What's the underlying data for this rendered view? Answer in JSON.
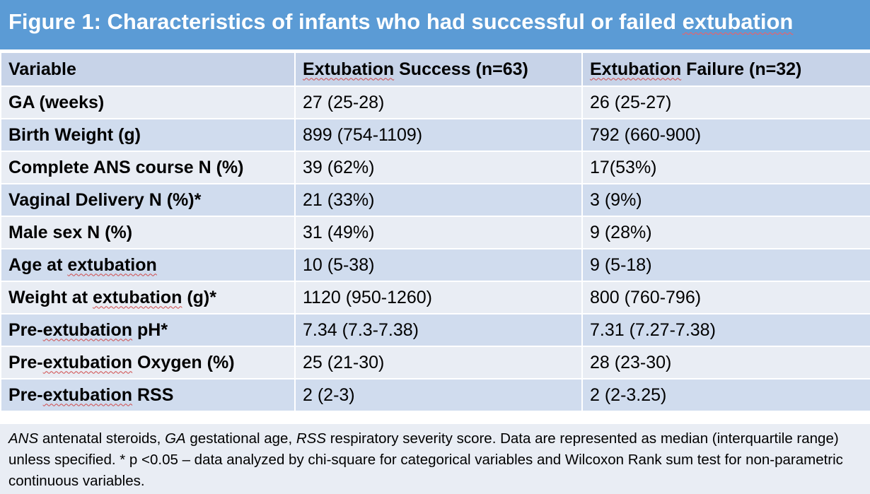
{
  "title": {
    "prefix": "Figure 1: Characteristics of infants who had successful or failed ",
    "last_word": "extubation"
  },
  "table": {
    "headers": [
      {
        "pre": "",
        "sq": "",
        "text": "Variable"
      },
      {
        "pre": "",
        "sq": "Extubation",
        "text": " Success (n=63)"
      },
      {
        "pre": "",
        "sq": "Extubation",
        "text": " Failure (n=32)"
      }
    ],
    "rows": [
      {
        "var_pre": "GA (weeks)",
        "var_sq": "",
        "var_post": "",
        "success": "27 (25-28)",
        "failure": "26 (25-27)"
      },
      {
        "var_pre": "Birth Weight (g)",
        "var_sq": "",
        "var_post": "",
        "success": "899 (754-1109)",
        "failure": "792 (660-900)"
      },
      {
        "var_pre": "Complete ANS course N (%)",
        "var_sq": "",
        "var_post": "",
        "success": "39 (62%)",
        "failure": "17(53%)"
      },
      {
        "var_pre": "Vaginal Delivery N (%)*",
        "var_sq": "",
        "var_post": "",
        "success": "21 (33%)",
        "failure": "3 (9%)"
      },
      {
        "var_pre": "Male sex N (%)",
        "var_sq": "",
        "var_post": "",
        "success": "31 (49%)",
        "failure": "9 (28%)"
      },
      {
        "var_pre": "Age at ",
        "var_sq": "extubation",
        "var_post": "",
        "success": "10 (5-38)",
        "failure": "9 (5-18)"
      },
      {
        "var_pre": "Weight at ",
        "var_sq": "extubation",
        "var_post": " (g)*",
        "success": "1120 (950-1260)",
        "failure": "800 (760-796)"
      },
      {
        "var_pre": "Pre-",
        "var_sq": "extubation",
        "var_post": " pH*",
        "success": "7.34 (7.3-7.38)",
        "failure": "7.31 (7.27-7.38)"
      },
      {
        "var_pre": "Pre-",
        "var_sq": "extubation",
        "var_post": " Oxygen (%)",
        "success": "25 (21-30)",
        "failure": "28 (23-30)"
      },
      {
        "var_pre": "Pre-",
        "var_sq": "extubation",
        "var_post": " RSS",
        "success": "2 (2-3)",
        "failure": "2 (2-3.25)"
      }
    ]
  },
  "footnote": {
    "ans_abbr": "ANS",
    "ans_def": " antenatal steroids, ",
    "ga_abbr": "GA",
    "ga_def": " gestational age, ",
    "rss_abbr": "RSS",
    "rss_def": " respiratory severity score. Data are represented as median (interquartile range) unless specified. * p <0.05 – data analyzed by chi-square for categorical variables and Wilcoxon Rank sum test for non-parametric continuous variables."
  },
  "colors": {
    "title_bg": "#5b9bd5",
    "header_bg": "#c7d3e8",
    "row_light": "#e9edf4",
    "row_dark": "#d0dcee"
  }
}
